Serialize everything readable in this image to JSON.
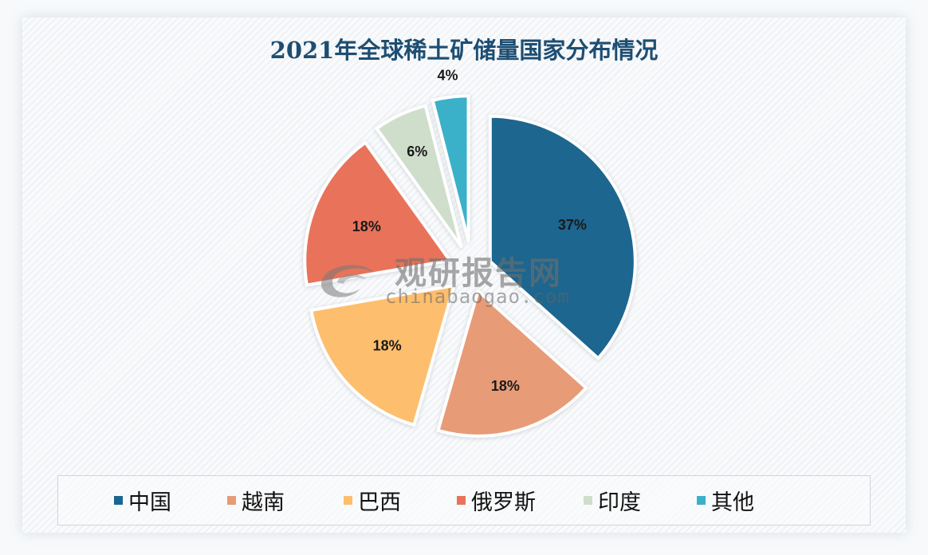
{
  "title": "2021年全球稀土矿储量国家分布情况",
  "watermark": {
    "cn": "观研报告网",
    "en": "chinabaogao.com"
  },
  "chart_data": {
    "type": "pie",
    "title": "2021年全球稀土矿储量国家分布情况",
    "categories": [
      "中国",
      "越南",
      "巴西",
      "俄罗斯",
      "印度",
      "其他"
    ],
    "values": [
      37,
      18,
      18,
      18,
      6,
      4
    ],
    "labels": [
      "37%",
      "18%",
      "18%",
      "18%",
      "6%",
      "4%"
    ],
    "colors": [
      "#1a6690",
      "#e79b77",
      "#fdbe6d",
      "#e8735a",
      "#cfdecb",
      "#3bb0c9"
    ],
    "exploded": true,
    "start_angle": "12 o'clock, clockwise",
    "legend_position": "bottom"
  },
  "legend": [
    {
      "label": "中国",
      "color": "#1a6690"
    },
    {
      "label": "越南",
      "color": "#e79b77"
    },
    {
      "label": "巴西",
      "color": "#fdbe6d"
    },
    {
      "label": "俄罗斯",
      "color": "#e8735a"
    },
    {
      "label": "印度",
      "color": "#cfdecb"
    },
    {
      "label": "其他",
      "color": "#3bb0c9"
    }
  ]
}
